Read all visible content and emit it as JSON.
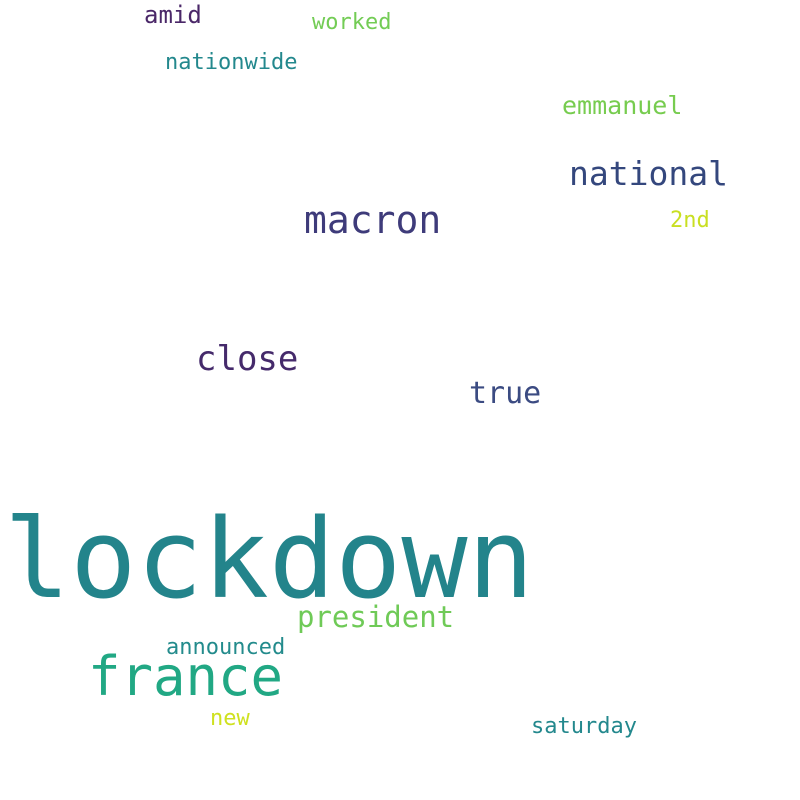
{
  "words": [
    {
      "text": "lockdown",
      "color": "#23848b"
    },
    {
      "text": "macron",
      "color": "#3e3b7a"
    },
    {
      "text": "close",
      "color": "#452a6b"
    },
    {
      "text": "national",
      "color": "#34477d"
    },
    {
      "text": "france",
      "color": "#21a884"
    },
    {
      "text": "president",
      "color": "#6fca57"
    },
    {
      "text": "true",
      "color": "#3b4b82"
    },
    {
      "text": "emmanuel",
      "color": "#77cc4f"
    },
    {
      "text": "amid",
      "color": "#4a2768"
    },
    {
      "text": "worked",
      "color": "#73cc55"
    },
    {
      "text": "nationwide",
      "color": "#23888d"
    },
    {
      "text": "2nd",
      "color": "#c9df22"
    },
    {
      "text": "announced",
      "color": "#238b8c"
    },
    {
      "text": "new",
      "color": "#cfe11f"
    },
    {
      "text": "saturday",
      "color": "#23888d"
    }
  ]
}
